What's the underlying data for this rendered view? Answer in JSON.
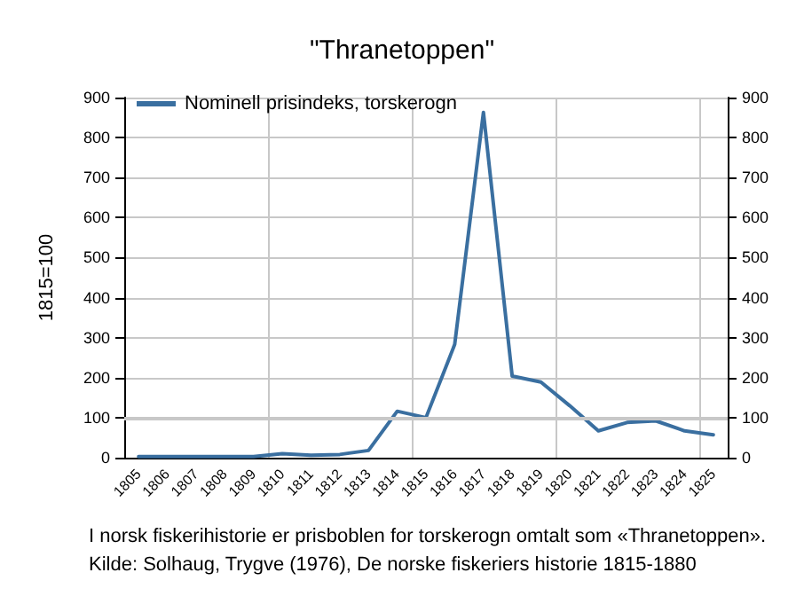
{
  "chart_data": {
    "type": "line",
    "title": "\"Thranetoppen\"",
    "ylabel": "1815=100",
    "categories": [
      "1805",
      "1806",
      "1807",
      "1808",
      "1809",
      "1810",
      "1811",
      "1812",
      "1813",
      "1814",
      "1815",
      "1816",
      "1817",
      "1818",
      "1819",
      "1820",
      "1821",
      "1822",
      "1823",
      "1824",
      "1825"
    ],
    "series": [
      {
        "name": "Nominell prisindeks, torskerogn",
        "color": "#3a6fa0",
        "values": [
          3,
          3,
          3,
          3,
          3,
          10,
          6,
          8,
          18,
          116,
          100,
          283,
          863,
          204,
          189,
          130,
          67,
          88,
          92,
          67,
          57
        ]
      }
    ],
    "ylim": [
      0,
      900
    ],
    "yticks": [
      0,
      100,
      200,
      300,
      400,
      500,
      600,
      700,
      800,
      900
    ],
    "y2lim": [
      0,
      900
    ],
    "y2ticks": [
      0,
      100,
      200,
      300,
      400,
      500,
      600,
      700,
      800,
      900
    ],
    "ref_lines": [
      {
        "axis": "y",
        "value": 100,
        "color": "#c8c8c8"
      }
    ],
    "grid": true,
    "legend": "top left",
    "marker": "none",
    "line_style": "solid",
    "annotations": [
      "I norsk fiskerihistorie er prisboblen for torskerogn omtalt som «Thranetoppen».",
      "Kilde: Solhaug, Trygve (1976), De norske fiskeriers historie 1815-1880"
    ]
  }
}
